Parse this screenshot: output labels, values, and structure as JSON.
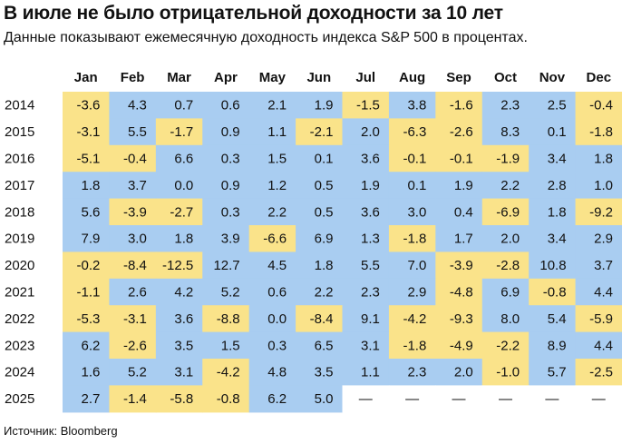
{
  "title": "В июле не было отрицательной доходности за 10 лет",
  "subtitle": "Данные показывают ежемесячную доходность индекса S&P 500 в процентах.",
  "source": "Источник: Bloomberg",
  "colors": {
    "positive": "#a9cdf1",
    "negative": "#fae38a",
    "empty": "#ffffff",
    "text": "#111111"
  },
  "chart_data": {
    "type": "heatmap",
    "title": "В июле не было отрицательной доходности за 10 лет",
    "subtitle": "Данные показывают ежемесячную доходность индекса S&P 500 в процентах.",
    "columns": [
      "Jan",
      "Feb",
      "Mar",
      "Apr",
      "May",
      "Jun",
      "Jul",
      "Aug",
      "Sep",
      "Oct",
      "Nov",
      "Dec"
    ],
    "rows": [
      "2014",
      "2015",
      "2016",
      "2017",
      "2018",
      "2019",
      "2020",
      "2021",
      "2022",
      "2023",
      "2024",
      "2025"
    ],
    "missing_label": "—",
    "values": [
      [
        -3.6,
        4.3,
        0.7,
        0.6,
        2.1,
        1.9,
        -1.5,
        3.8,
        -1.6,
        2.3,
        2.5,
        -0.4
      ],
      [
        -3.1,
        5.5,
        -1.7,
        0.9,
        1.1,
        -2.1,
        2.0,
        -6.3,
        -2.6,
        8.3,
        0.1,
        -1.8
      ],
      [
        -5.1,
        -0.4,
        6.6,
        0.3,
        1.5,
        0.1,
        3.6,
        -0.1,
        -0.1,
        -1.9,
        3.4,
        1.8
      ],
      [
        1.8,
        3.7,
        0.0,
        0.9,
        1.2,
        0.5,
        1.9,
        0.1,
        1.9,
        2.2,
        2.8,
        1.0
      ],
      [
        5.6,
        -3.9,
        -2.7,
        0.3,
        2.2,
        0.5,
        3.6,
        3.0,
        0.4,
        -6.9,
        1.8,
        -9.2
      ],
      [
        7.9,
        3.0,
        1.8,
        3.9,
        -6.6,
        6.9,
        1.3,
        -1.8,
        1.7,
        2.0,
        3.4,
        2.9
      ],
      [
        -0.2,
        -8.4,
        -12.5,
        12.7,
        4.5,
        1.8,
        5.5,
        7.0,
        -3.9,
        -2.8,
        10.8,
        3.7
      ],
      [
        -1.1,
        2.6,
        4.2,
        5.2,
        0.6,
        2.2,
        2.3,
        2.9,
        -4.8,
        6.9,
        -0.8,
        4.4
      ],
      [
        -5.3,
        -3.1,
        3.6,
        -8.8,
        0.0,
        -8.4,
        9.1,
        -4.2,
        -9.3,
        8.0,
        5.4,
        -5.9
      ],
      [
        6.2,
        -2.6,
        3.5,
        1.5,
        0.3,
        6.5,
        3.1,
        -1.8,
        -4.9,
        -2.2,
        8.9,
        4.4
      ],
      [
        1.6,
        5.2,
        3.1,
        -4.2,
        4.8,
        3.5,
        1.1,
        2.3,
        2.0,
        -1.0,
        5.7,
        -2.5
      ],
      [
        2.7,
        -1.4,
        -5.8,
        -0.8,
        6.2,
        5.0,
        null,
        null,
        null,
        null,
        null,
        null
      ]
    ]
  }
}
